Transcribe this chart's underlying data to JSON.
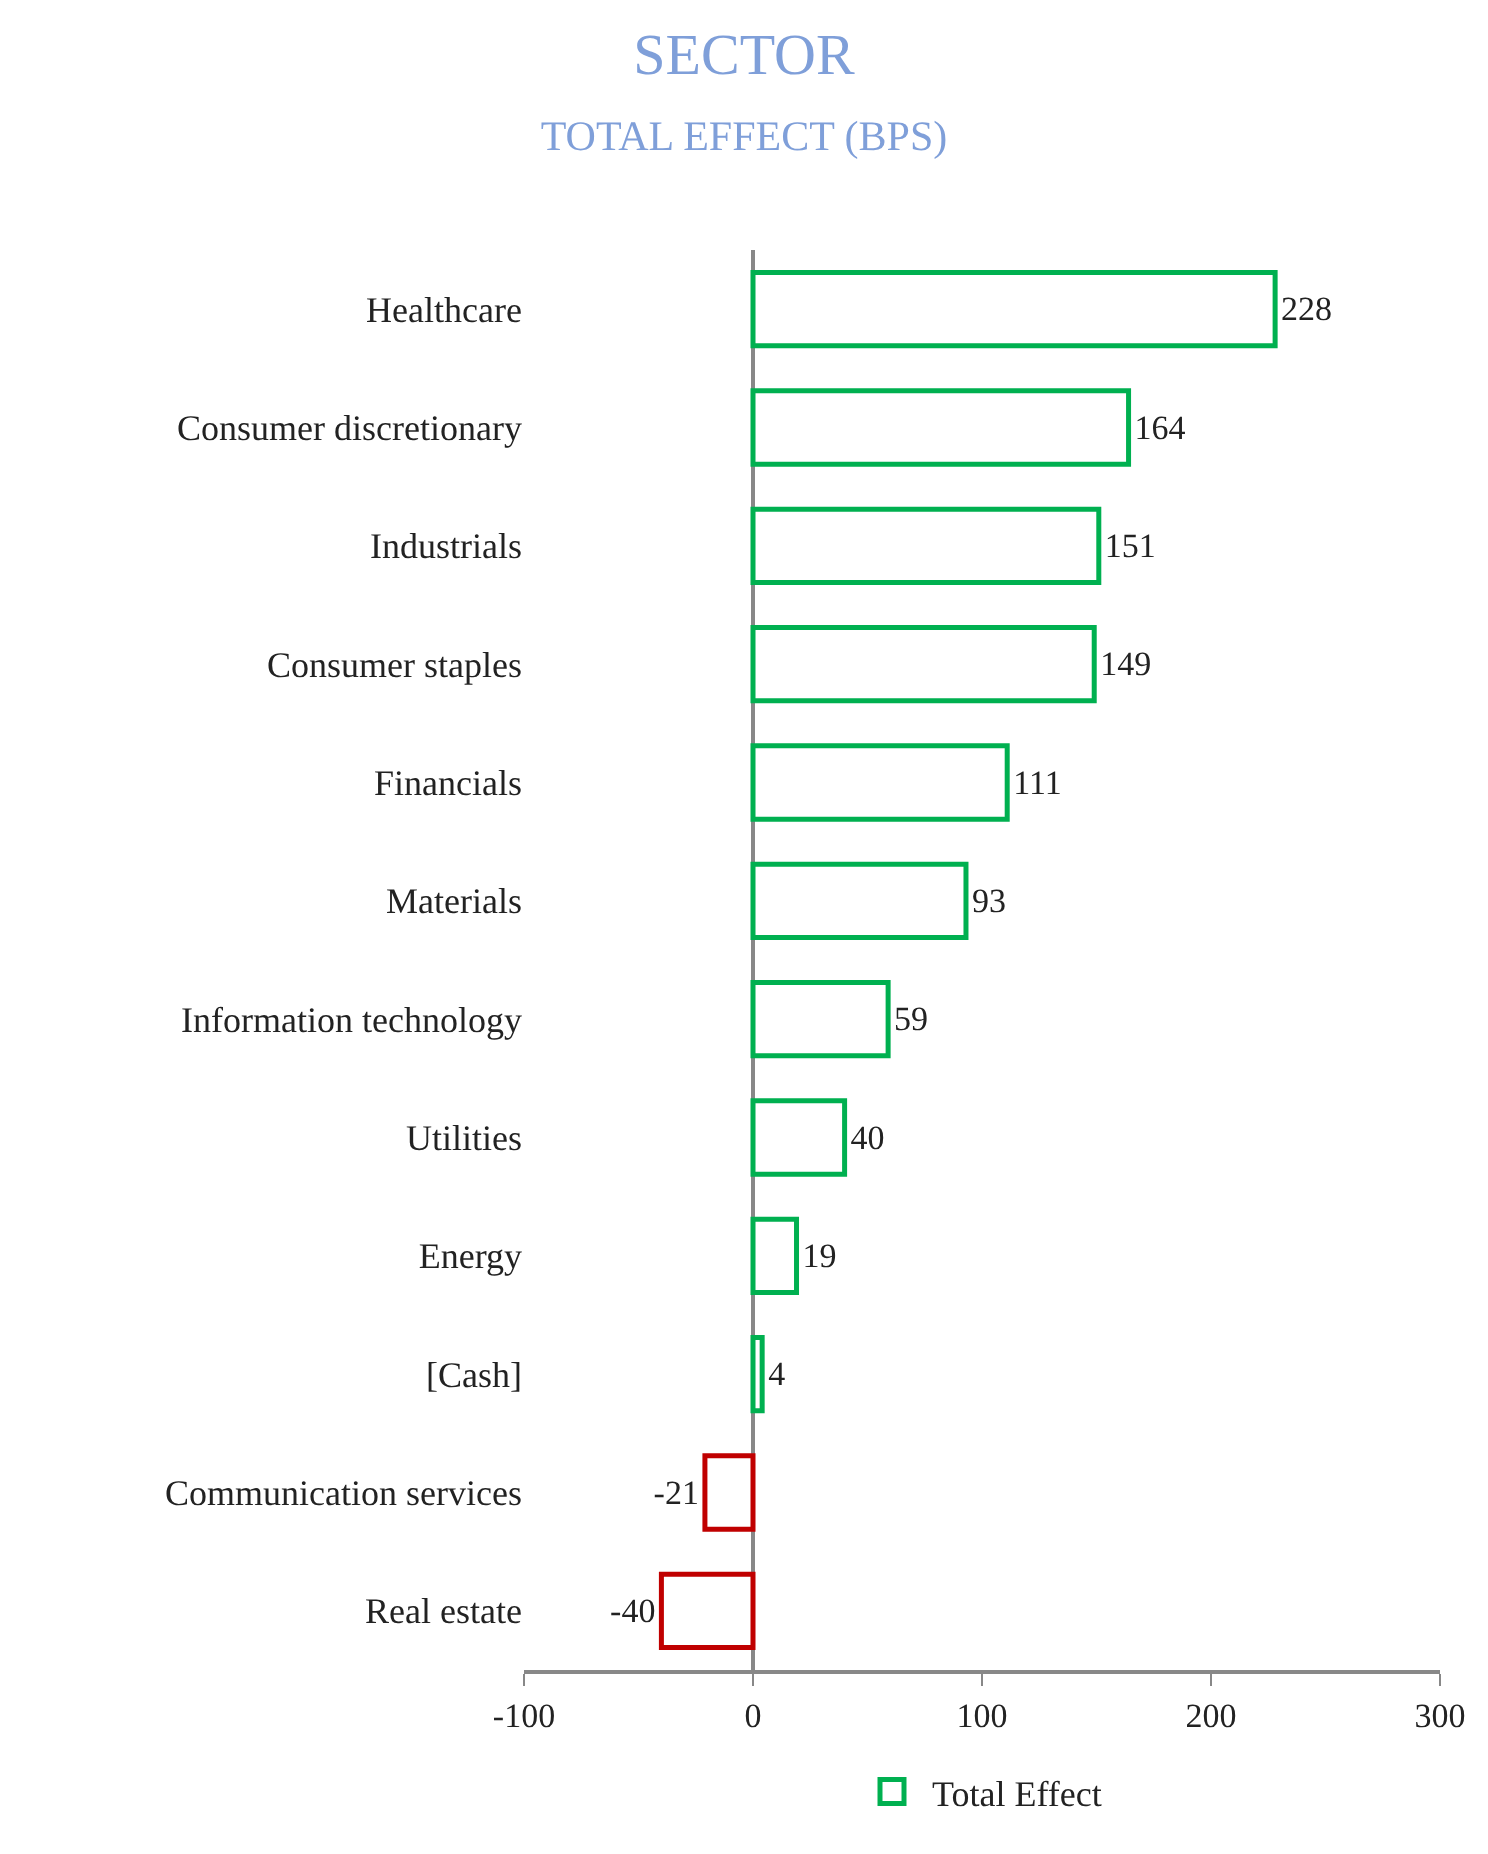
{
  "chart_data": {
    "type": "bar",
    "orientation": "horizontal",
    "title": "SECTOR",
    "subtitle": "TOTAL EFFECT (BPS)",
    "categories": [
      "Healthcare",
      "Consumer discretionary",
      "Industrials",
      "Consumer staples",
      "Financials",
      "Materials",
      "Information technology",
      "Utilities",
      "Energy",
      "[Cash]",
      "Communication services",
      "Real estate"
    ],
    "series": [
      {
        "name": "Total Effect",
        "values": [
          228,
          164,
          151,
          149,
          111,
          93,
          59,
          40,
          19,
          4,
          -21,
          -40
        ],
        "colors": [
          "#00b050",
          "#00b050",
          "#00b050",
          "#00b050",
          "#00b050",
          "#00b050",
          "#00b050",
          "#00b050",
          "#00b050",
          "#00b050",
          "#c00000",
          "#c00000"
        ]
      }
    ],
    "xlim": [
      -100,
      300
    ],
    "xticks": [
      -100,
      0,
      100,
      200,
      300
    ],
    "data_labels": true,
    "legend": "bottom"
  }
}
